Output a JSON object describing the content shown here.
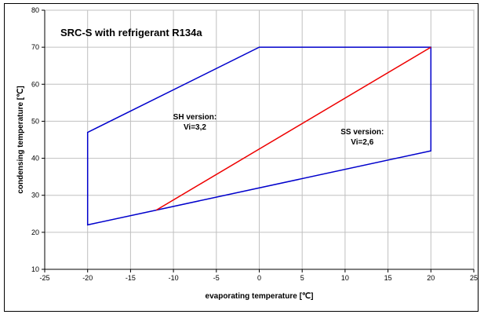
{
  "chart_data": {
    "type": "line",
    "title": "SRC-S with refrigerant R134a",
    "xlabel": "evaporating temperature [℃]",
    "ylabel": "condensing temperature [℃]",
    "xlim": [
      -25,
      25
    ],
    "ylim": [
      10,
      80
    ],
    "xticks": [
      -25,
      -20,
      -15,
      -10,
      -5,
      0,
      5,
      10,
      15,
      20,
      25
    ],
    "yticks": [
      10,
      20,
      30,
      40,
      50,
      60,
      70,
      80
    ],
    "grid": true,
    "series": [
      {
        "name": "",
        "color": "#0000cc",
        "closed": true,
        "x": [
          -20,
          -20,
          -12,
          20,
          20,
          0
        ],
        "y": [
          47,
          22,
          26,
          42,
          70,
          70
        ]
      },
      {
        "name": "",
        "color": "#ee0000",
        "closed": false,
        "x": [
          -12,
          20
        ],
        "y": [
          26,
          70
        ]
      }
    ],
    "annotations": [
      {
        "lines": [
          "SH version:",
          "Vi=3,2"
        ],
        "x": -7.5,
        "y": 50.5
      },
      {
        "lines": [
          "SS version:",
          "Vi=2,6"
        ],
        "x": 12,
        "y": 46.5
      }
    ]
  }
}
